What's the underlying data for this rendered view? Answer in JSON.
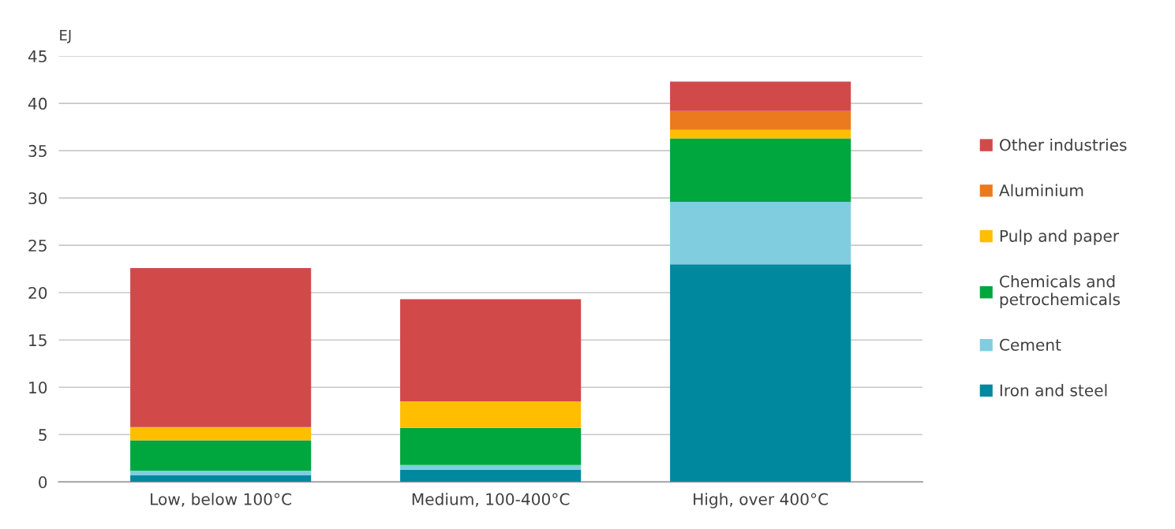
{
  "chart_data": {
    "type": "bar",
    "stacked": true,
    "ylabel": "EJ",
    "categories": [
      "Low, below 100°C",
      "Medium, 100-400°C",
      "High, over 400°C"
    ],
    "series": [
      {
        "name": "Iron and steel",
        "color": "#00889e",
        "values": [
          0.7,
          1.3,
          23.0
        ]
      },
      {
        "name": "Cement",
        "color": "#80cde0",
        "values": [
          0.5,
          0.5,
          6.6
        ]
      },
      {
        "name": "Chemicals and petrochemicals",
        "color": "#00a63e",
        "values": [
          3.2,
          3.9,
          6.7
        ]
      },
      {
        "name": "Pulp and paper",
        "color": "#ffbe00",
        "values": [
          1.4,
          2.8,
          0.9
        ]
      },
      {
        "name": "Aluminium",
        "color": "#eb7a1e",
        "values": [
          0,
          0,
          2.0
        ]
      },
      {
        "name": "Other industries",
        "color": "#d2494a",
        "values": [
          16.8,
          10.8,
          3.1
        ]
      }
    ],
    "ylim": [
      0,
      45
    ],
    "yticks": [
      0,
      5,
      10,
      15,
      20,
      25,
      30,
      35,
      40,
      45
    ],
    "grid": "y",
    "legend": "right"
  }
}
